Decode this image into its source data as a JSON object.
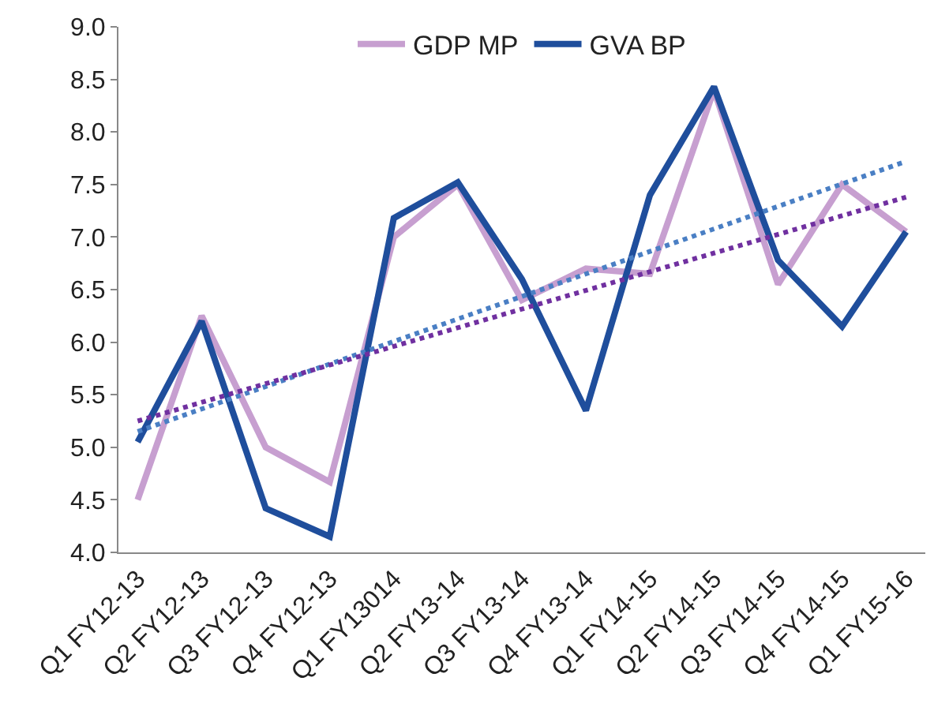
{
  "chart_data": {
    "type": "line",
    "categories": [
      "Q1 FY12-13",
      "Q2 FY12-13",
      "Q3 FY12-13",
      "Q4 FY12-13",
      "Q1 FY13014",
      "Q2 FY13-14",
      "Q3 FY13-14",
      "Q4 FY13-14",
      "Q1 FY14-15",
      "Q2 FY14-15",
      "Q3 FY14-15",
      "Q4 FY14-15",
      "Q1 FY15-16"
    ],
    "series": [
      {
        "name": "GDP MP",
        "color": "#c79fd0",
        "values": [
          4.5,
          6.25,
          5.0,
          4.67,
          7.0,
          7.5,
          6.4,
          6.7,
          6.65,
          8.4,
          6.55,
          7.5,
          7.05
        ]
      },
      {
        "name": "GVA BP",
        "color": "#1f4e9c",
        "values": [
          5.05,
          6.2,
          4.42,
          4.15,
          7.18,
          7.52,
          6.6,
          5.35,
          7.4,
          8.43,
          6.78,
          6.15,
          7.05
        ]
      },
      {
        "color": "#4a7fc4",
        "line_style": "dotted",
        "values": [
          5.15,
          null,
          null,
          null,
          null,
          null,
          null,
          null,
          null,
          null,
          null,
          null,
          7.72
        ]
      },
      {
        "color": "#7030a0",
        "line_style": "dotted",
        "values": [
          5.25,
          null,
          null,
          null,
          null,
          null,
          null,
          null,
          null,
          null,
          null,
          null,
          7.38
        ]
      }
    ],
    "ylim": [
      4.0,
      9.0
    ],
    "yticks": [
      {
        "value": 4.0,
        "label": "4.0"
      },
      {
        "value": 4.5,
        "label": "4.5"
      },
      {
        "value": 5.0,
        "label": "5.0"
      },
      {
        "value": 5.5,
        "label": "5.5"
      },
      {
        "value": 6.0,
        "label": "6.0"
      },
      {
        "value": 6.5,
        "label": "6.5"
      },
      {
        "value": 7.0,
        "label": "7.0"
      },
      {
        "value": 7.5,
        "label": "7.5"
      },
      {
        "value": 8.0,
        "label": "8.0"
      },
      {
        "value": 8.5,
        "label": "8.5"
      },
      {
        "value": 9.0,
        "label": "9.0"
      }
    ],
    "legend": "top",
    "marker": "none",
    "line_style": "solid"
  }
}
